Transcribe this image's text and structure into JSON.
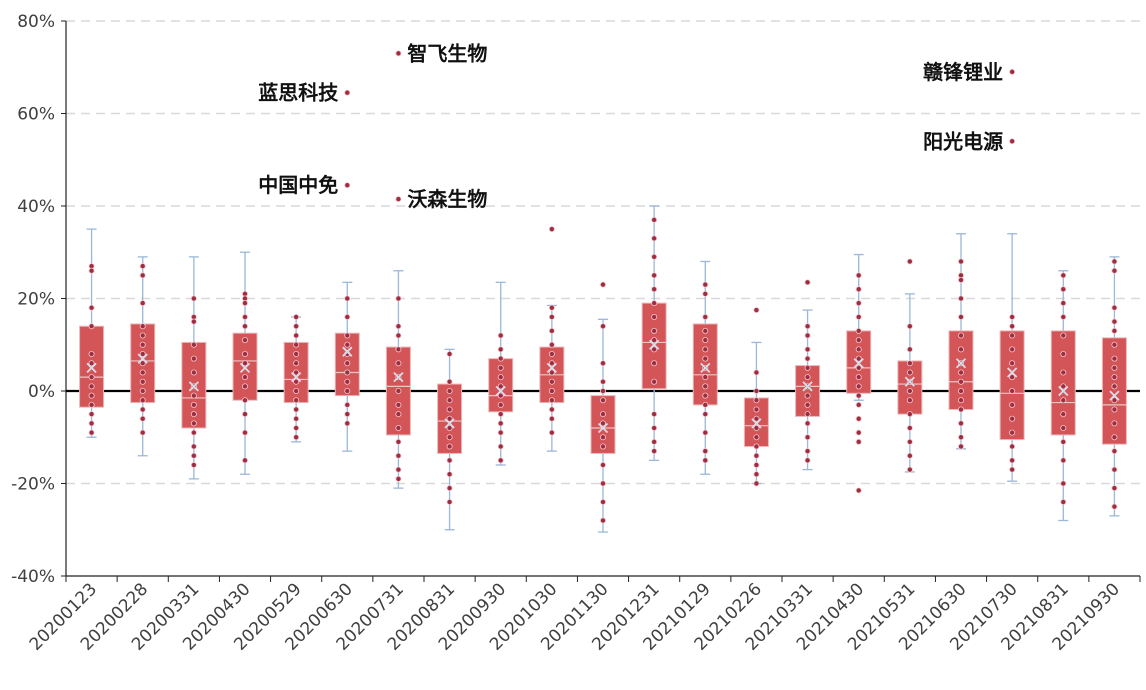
{
  "chart_data": {
    "type": "box",
    "title": "",
    "xlabel": "",
    "ylabel": "",
    "ylim": [
      -40,
      80
    ],
    "yticks": [
      -40,
      -20,
      0,
      20,
      40,
      60,
      80
    ],
    "ytick_labels": [
      "-40%",
      "-20%",
      "0%",
      "20%",
      "40%",
      "60%",
      "80%"
    ],
    "grid": "horizontal-dashed",
    "colors": {
      "box": "#d45558",
      "whisker": "#9bb7d9",
      "point": "#9e2d44",
      "zero_line": "#000000",
      "grid": "#d9d9d9"
    },
    "categories": [
      "20200123",
      "20200228",
      "20200331",
      "20200430",
      "20200529",
      "20200630",
      "20200731",
      "20200831",
      "20200930",
      "20201030",
      "20201130",
      "20201231",
      "20210129",
      "20210226",
      "20210331",
      "20210430",
      "20210531",
      "20210630",
      "20210730",
      "20210831",
      "20210930"
    ],
    "boxes": [
      {
        "min": -10,
        "q1": -3.5,
        "median": 3,
        "q3": 14,
        "max": 35,
        "mean": 5,
        "points": [
          27,
          26,
          18,
          14,
          8,
          6,
          3,
          1,
          -1,
          -3,
          -5,
          -7,
          -9
        ]
      },
      {
        "min": -14,
        "q1": -2.5,
        "median": 6.5,
        "q3": 14.5,
        "max": 29,
        "mean": 7,
        "points": [
          27,
          25,
          19,
          14,
          12,
          10,
          8,
          6,
          4,
          2,
          0,
          -2,
          -4,
          -6,
          -9
        ]
      },
      {
        "min": -19,
        "q1": -8,
        "median": -1.5,
        "q3": 10.5,
        "max": 29,
        "mean": 1,
        "points": [
          20,
          16,
          15,
          10,
          7,
          4,
          1,
          -1,
          -3,
          -5,
          -7,
          -9,
          -12,
          -14,
          -16
        ]
      },
      {
        "min": -18,
        "q1": -2,
        "median": 6.5,
        "q3": 12.5,
        "max": 30,
        "mean": 5,
        "points": [
          21,
          20,
          19,
          16,
          14,
          11,
          8,
          6,
          3,
          1,
          -2,
          -5,
          -9,
          -15
        ]
      },
      {
        "min": -11,
        "q1": -2.5,
        "median": 2.5,
        "q3": 10.5,
        "max": 16,
        "mean": 3,
        "points": [
          16,
          14,
          12,
          10,
          8,
          6,
          4,
          2,
          0,
          -2,
          -4,
          -6,
          -8,
          -10
        ]
      },
      {
        "min": -13,
        "q1": -1,
        "median": 4,
        "q3": 12.5,
        "max": 23.5,
        "mean": 8.5,
        "points": [
          44.5,
          64.5,
          20,
          16,
          12,
          10,
          8,
          6,
          4,
          2,
          0,
          -3,
          -5,
          -7
        ]
      },
      {
        "min": -21,
        "q1": -9.5,
        "median": 1,
        "q3": 9.5,
        "max": 26,
        "mean": 3,
        "points": [
          73,
          41.5,
          20,
          14,
          12,
          9,
          6,
          3,
          0,
          -3,
          -5,
          -8,
          -11,
          -14,
          -17,
          -19
        ]
      },
      {
        "min": -30,
        "q1": -13.5,
        "median": -6.5,
        "q3": 1.5,
        "max": 9,
        "mean": -7,
        "points": [
          8,
          2,
          0,
          -2,
          -4,
          -6,
          -8,
          -10,
          -12,
          -15,
          -18,
          -21,
          -24
        ]
      },
      {
        "min": -16,
        "q1": -4.5,
        "median": -1,
        "q3": 7,
        "max": 23.5,
        "mean": 0,
        "points": [
          12,
          9,
          7,
          5,
          3,
          1,
          -1,
          -3,
          -5,
          -7,
          -9,
          -12,
          -15
        ]
      },
      {
        "min": -13,
        "q1": -2.5,
        "median": 3.5,
        "q3": 9.5,
        "max": 18.5,
        "mean": 5,
        "points": [
          35,
          18,
          16,
          13,
          10,
          8,
          6,
          4,
          2,
          0,
          -2,
          -4,
          -6,
          -9
        ]
      },
      {
        "min": -30.5,
        "q1": -13.5,
        "median": -8,
        "q3": -1,
        "max": 15.5,
        "mean": -8,
        "points": [
          23,
          14,
          6,
          2,
          0,
          -2,
          -5,
          -7,
          -10,
          -12,
          -16,
          -20,
          -24,
          -28
        ]
      },
      {
        "min": -15,
        "q1": 0.5,
        "median": 10.5,
        "q3": 19,
        "max": 40,
        "mean": 10,
        "points": [
          37,
          33,
          29,
          25,
          22,
          19,
          16,
          13,
          11,
          9,
          6,
          2,
          -5,
          -8,
          -11,
          -13
        ]
      },
      {
        "min": -18,
        "q1": -3,
        "median": 3.5,
        "q3": 14.5,
        "max": 28,
        "mean": 5,
        "points": [
          23,
          21,
          16,
          13,
          11,
          9,
          7,
          5,
          3,
          1,
          -1,
          -3,
          -5,
          -9,
          -13,
          -15
        ]
      },
      {
        "min": -20,
        "q1": -12,
        "median": -7.5,
        "q3": -1.5,
        "max": 10.5,
        "mean": -7,
        "points": [
          17.5,
          4,
          0,
          -2,
          -4,
          -6,
          -8,
          -10,
          -12,
          -14,
          -16,
          -18,
          -20
        ]
      },
      {
        "min": -17,
        "q1": -5.5,
        "median": 1,
        "q3": 5.5,
        "max": 17.5,
        "mean": 1,
        "points": [
          23.5,
          14,
          12,
          9,
          7,
          5,
          3,
          1,
          -1,
          -3,
          -5,
          -7,
          -10,
          -13,
          -15
        ]
      },
      {
        "min": -2,
        "q1": -0.5,
        "median": 5,
        "q3": 13,
        "max": 29.5,
        "mean": 6,
        "points": [
          25,
          22,
          19,
          16,
          13,
          11,
          9,
          7,
          5,
          3,
          1,
          -1,
          -3,
          -6,
          -9,
          -11,
          -21.5
        ]
      },
      {
        "min": -17.5,
        "q1": -5,
        "median": 1.5,
        "q3": 6.5,
        "max": 21,
        "mean": 2,
        "points": [
          28,
          14,
          9,
          6,
          4,
          2,
          0,
          -2,
          -5,
          -8,
          -11,
          -14,
          -17
        ]
      },
      {
        "min": -12.5,
        "q1": -4,
        "median": 2,
        "q3": 13,
        "max": 34,
        "mean": 6,
        "points": [
          28,
          25,
          24,
          20,
          16,
          12,
          9,
          6,
          4,
          2,
          0,
          -2,
          -4,
          -7,
          -10,
          -12
        ]
      },
      {
        "min": -19.5,
        "q1": -10.5,
        "median": -0.5,
        "q3": 13,
        "max": 34,
        "mean": 4,
        "points": [
          69,
          54,
          16,
          14,
          12,
          9,
          6,
          3,
          0,
          -3,
          -6,
          -9,
          -12,
          -15,
          -17
        ]
      },
      {
        "min": -28,
        "q1": -9.5,
        "median": -2.5,
        "q3": 13,
        "max": 26,
        "mean": 0,
        "points": [
          25,
          22,
          19,
          16,
          12,
          8,
          4,
          1,
          -2,
          -5,
          -8,
          -11,
          -15,
          -20,
          -24
        ]
      },
      {
        "min": -27,
        "q1": -11.5,
        "median": -3,
        "q3": 11.5,
        "max": 29,
        "mean": -1,
        "points": [
          28,
          26,
          18,
          15,
          13,
          10,
          7,
          5,
          3,
          1,
          -2,
          -4,
          -7,
          -10,
          -13,
          -17,
          -21,
          -25
        ]
      }
    ],
    "annotations": [
      {
        "text": "智飞生物",
        "x_index": 6,
        "y": 73,
        "side": "right"
      },
      {
        "text": "蓝思科技",
        "x_index": 5,
        "y": 64.5,
        "side": "left"
      },
      {
        "text": "中国中免",
        "x_index": 5,
        "y": 44.5,
        "side": "left"
      },
      {
        "text": "沃森生物",
        "x_index": 6,
        "y": 41.5,
        "side": "right"
      },
      {
        "text": "赣锋锂业",
        "x_index": 18,
        "y": 69,
        "side": "left"
      },
      {
        "text": "阳光电源",
        "x_index": 18,
        "y": 54,
        "side": "left"
      }
    ]
  }
}
